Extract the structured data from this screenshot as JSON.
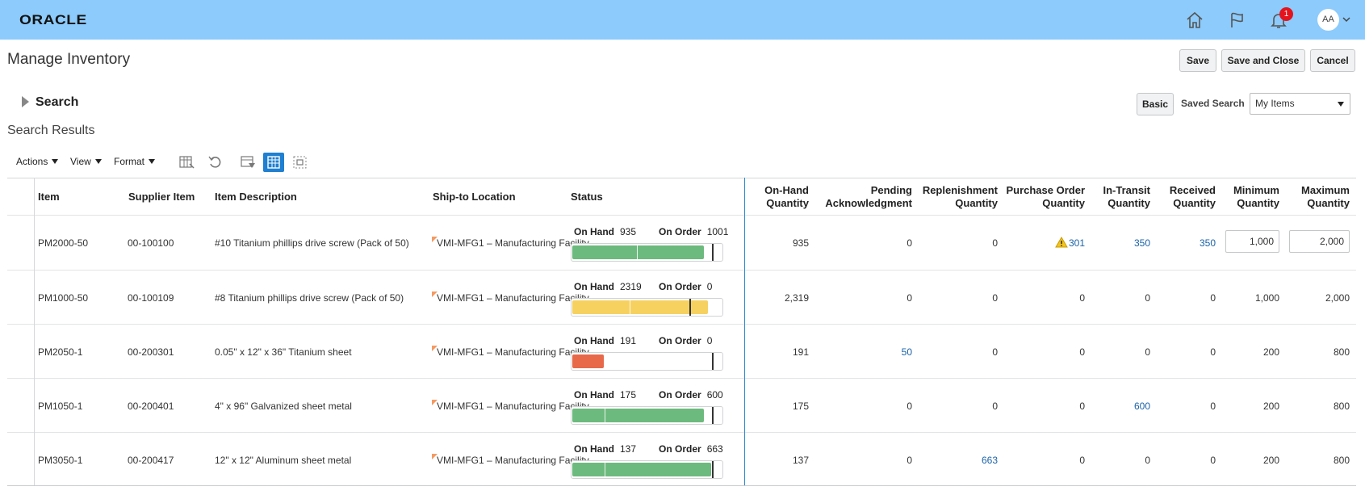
{
  "header": {
    "logo": "ORACLE",
    "notification_count": "1",
    "avatar_initials": "AA"
  },
  "page": {
    "title": "Manage Inventory",
    "buttons": {
      "save": "Save",
      "save_and_close": "Save and Close",
      "cancel": "Cancel"
    }
  },
  "search": {
    "label": "Search",
    "basic_button": "Basic",
    "saved_search_label": "Saved Search",
    "saved_search_value": "My Items"
  },
  "results": {
    "title": "Search Results",
    "toolbar": {
      "actions": "Actions",
      "view": "View",
      "format": "Format"
    }
  },
  "columns": {
    "item": "Item",
    "supplier_item": "Supplier Item",
    "item_description": "Item Description",
    "ship_to_location": "Ship-to Location",
    "status": "Status",
    "on_hand_1": "On-Hand",
    "on_hand_2": "Quantity",
    "pending_1": "Pending",
    "pending_2": "Acknowledgment",
    "replenishment_1": "Replenishment",
    "replenishment_2": "Quantity",
    "po_1": "Purchase Order",
    "po_2": "Quantity",
    "in_transit_1": "In-Transit",
    "in_transit_2": "Quantity",
    "received_1": "Received",
    "received_2": "Quantity",
    "minimum_1": "Minimum",
    "minimum_2": "Quantity",
    "maximum_1": "Maximum",
    "maximum_2": "Quantity"
  },
  "status_labels": {
    "on_hand": "On Hand",
    "on_order": "On Order"
  },
  "colors": {
    "green": "#6cba7d",
    "yellow": "#f6d160",
    "red": "#e8684a",
    "link": "#1a62a8",
    "header_bar": "#8ccbfc"
  },
  "rows": [
    {
      "item": "PM2000-50",
      "supplier_item": "00-100100",
      "description": "#10 Titanium phillips drive screw (Pack of 50)",
      "location": "VMI-MFG1 – Manufacturing Facility",
      "status_on_hand": "935",
      "status_on_order": "1001",
      "on_hand_qty": "935",
      "pending_ack": "0",
      "replenishment_qty": "0",
      "po_qty": "301",
      "in_transit_qty": "350",
      "received_qty": "350",
      "minimum_qty": "1,000",
      "maximum_qty": "2,000",
      "bar_color": "green",
      "bar_fill_fraction": 0.88,
      "bar_split_fraction": 0.44,
      "bar_target_fraction": 0.94
    },
    {
      "item": "PM1000-50",
      "supplier_item": "00-100109",
      "description": "#8 Titanium phillips drive screw (Pack of 50)",
      "location": "VMI-MFG1 – Manufacturing Facility",
      "status_on_hand": "2319",
      "status_on_order": "0",
      "on_hand_qty": "2,319",
      "pending_ack": "0",
      "replenishment_qty": "0",
      "po_qty": "0",
      "in_transit_qty": "0",
      "received_qty": "0",
      "minimum_qty": "1,000",
      "maximum_qty": "2,000",
      "bar_color": "yellow",
      "bar_fill_fraction": 0.91,
      "bar_split_fraction": 0.39,
      "bar_target_fraction": 0.79
    },
    {
      "item": "PM2050-1",
      "supplier_item": "00-200301",
      "description": "0.05\" x 12\" x 36\" Titanium sheet",
      "location": "VMI-MFG1 – Manufacturing Facility",
      "status_on_hand": "191",
      "status_on_order": "0",
      "on_hand_qty": "191",
      "pending_ack": "50",
      "replenishment_qty": "0",
      "po_qty": "0",
      "in_transit_qty": "0",
      "received_qty": "0",
      "minimum_qty": "200",
      "maximum_qty": "800",
      "bar_color": "red",
      "bar_fill_fraction": 0.21,
      "bar_split_fraction": null,
      "bar_target_fraction": 0.94
    },
    {
      "item": "PM1050-1",
      "supplier_item": "00-200401",
      "description": "4\" x 96\" Galvanized sheet metal",
      "location": "VMI-MFG1 – Manufacturing Facility",
      "status_on_hand": "175",
      "status_on_order": "600",
      "on_hand_qty": "175",
      "pending_ack": "0",
      "replenishment_qty": "0",
      "po_qty": "0",
      "in_transit_qty": "600",
      "received_qty": "0",
      "minimum_qty": "200",
      "maximum_qty": "800",
      "bar_color": "green",
      "bar_fill_fraction": 0.88,
      "bar_split_fraction": 0.22,
      "bar_target_fraction": 0.94
    },
    {
      "item": "PM3050-1",
      "supplier_item": "00-200417",
      "description": "12\" x 12\" Aluminum sheet metal",
      "location": "VMI-MFG1 – Manufacturing Facility",
      "status_on_hand": "137",
      "status_on_order": "663",
      "on_hand_qty": "137",
      "pending_ack": "0",
      "replenishment_qty": "663",
      "po_qty": "0",
      "in_transit_qty": "0",
      "received_qty": "0",
      "minimum_qty": "200",
      "maximum_qty": "800",
      "bar_color": "green",
      "bar_fill_fraction": 0.93,
      "bar_split_fraction": 0.22,
      "bar_target_fraction": 0.94
    }
  ]
}
